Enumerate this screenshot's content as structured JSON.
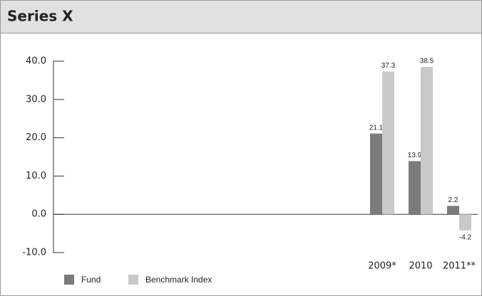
{
  "chart_data": {
    "type": "bar",
    "title": "Series X",
    "categories": [
      "2009*",
      "2010",
      "2011**"
    ],
    "series": [
      {
        "name": "Fund",
        "color": "#7b7b7b",
        "values": [
          21.1,
          13.9,
          2.2
        ]
      },
      {
        "name": "Benchmark Index",
        "color": "#c9c9c9",
        "values": [
          37.3,
          38.5,
          -4.2
        ]
      }
    ],
    "ylim": [
      -10,
      40
    ],
    "yticks": [
      {
        "value": -10,
        "label": "-10.0"
      },
      {
        "value": 0,
        "label": "0.0"
      },
      {
        "value": 10,
        "label": "10.0"
      },
      {
        "value": 20,
        "label": "20.0"
      },
      {
        "value": 30,
        "label": "30.0"
      },
      {
        "value": 40,
        "label": "40.0"
      }
    ]
  }
}
